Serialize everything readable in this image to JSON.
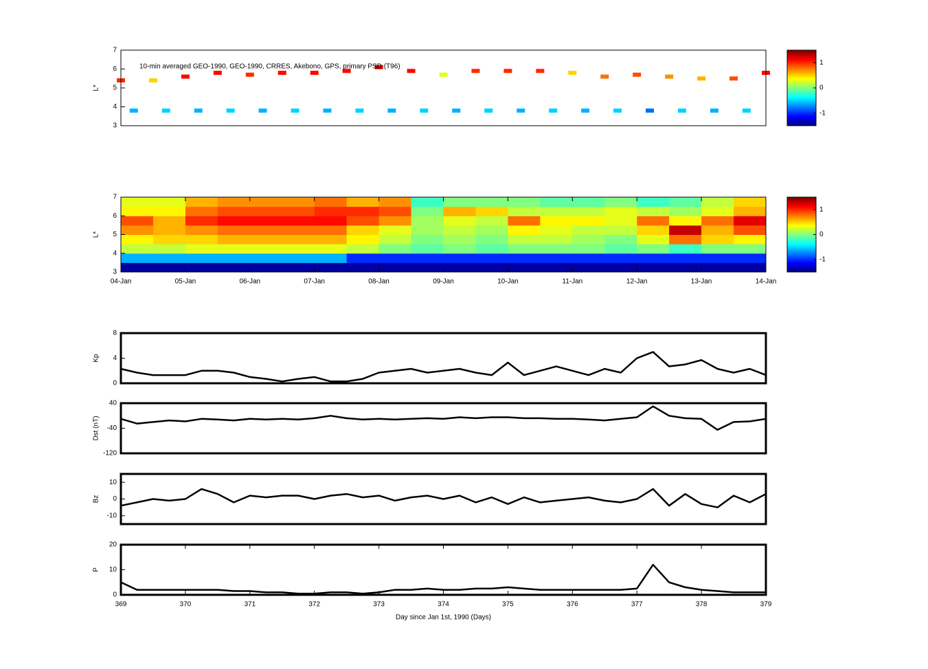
{
  "chart_data": [
    {
      "type": "scatter",
      "annotation": "10-min averaged GEO-1990, GEO-1990, CRRES, Akebono, GPS, primary PSD (T96)",
      "ylabel": "L*",
      "xlim": [
        369,
        379
      ],
      "ylim": [
        3,
        7
      ],
      "yticks": [
        3,
        4,
        5,
        6,
        7
      ],
      "colormap": "jet",
      "clim": [
        -1.5,
        1.5
      ],
      "colorbar_ticks": [
        -1,
        0,
        1
      ],
      "series": [
        {
          "x": [
            369,
            369.5,
            370,
            370.5,
            371,
            371.5,
            372,
            372.5,
            373,
            373.5,
            374,
            374.5,
            375,
            375.5,
            376,
            376.5,
            377,
            377.5,
            378,
            378.5,
            379
          ],
          "y": [
            5.4,
            5.4,
            5.6,
            5.8,
            5.7,
            5.8,
            5.8,
            5.9,
            6.1,
            5.9,
            5.7,
            5.9,
            5.9,
            5.9,
            5.8,
            5.6,
            5.7,
            5.6,
            5.5,
            5.5,
            5.8
          ],
          "values": [
            1.0,
            0.5,
            1.1,
            1.1,
            1.0,
            1.1,
            1.1,
            1.1,
            1.2,
            1.1,
            0.3,
            1.0,
            1.0,
            1.0,
            0.5,
            0.8,
            0.9,
            0.7,
            0.6,
            0.9,
            1.1
          ]
        },
        {
          "x": [
            369.2,
            369.7,
            370.2,
            370.7,
            371.2,
            371.7,
            372.2,
            372.7,
            373.2,
            373.7,
            374.2,
            374.7,
            375.2,
            375.7,
            376.2,
            376.7,
            377.2,
            377.7,
            378.2,
            378.7
          ],
          "y": [
            3.8,
            3.8,
            3.8,
            3.8,
            3.8,
            3.8,
            3.8,
            3.8,
            3.8,
            3.8,
            3.8,
            3.8,
            3.8,
            3.8,
            3.8,
            3.8,
            3.8,
            3.8,
            3.8,
            3.8
          ],
          "values": [
            -0.6,
            -0.5,
            -0.6,
            -0.5,
            -0.6,
            -0.5,
            -0.6,
            -0.5,
            -0.6,
            -0.5,
            -0.6,
            -0.5,
            -0.6,
            -0.5,
            -0.6,
            -0.5,
            -0.8,
            -0.5,
            -0.6,
            -0.5
          ]
        }
      ]
    },
    {
      "type": "heatmap",
      "ylabel": "L*",
      "xlim": [
        369,
        379
      ],
      "ylim": [
        3,
        7
      ],
      "yticks": [
        3,
        4,
        5,
        6,
        7
      ],
      "xticks": [
        {
          "value": 369,
          "label": "04-Jan"
        },
        {
          "value": 370,
          "label": "05-Jan"
        },
        {
          "value": 371,
          "label": "06-Jan"
        },
        {
          "value": 372,
          "label": "07-Jan"
        },
        {
          "value": 373,
          "label": "08-Jan"
        },
        {
          "value": 374,
          "label": "09-Jan"
        },
        {
          "value": 375,
          "label": "10-Jan"
        },
        {
          "value": 376,
          "label": "11-Jan"
        },
        {
          "value": 377,
          "label": "12-Jan"
        },
        {
          "value": 378,
          "label": "13-Jan"
        },
        {
          "value": 379,
          "label": "14-Jan"
        }
      ],
      "colormap": "jet",
      "clim": [
        -1.5,
        1.5
      ],
      "colorbar_ticks": [
        -1,
        0,
        1
      ],
      "x_edges": [
        369,
        369.5,
        370,
        370.5,
        371,
        371.5,
        372,
        372.5,
        373,
        373.5,
        374,
        374.5,
        375,
        375.5,
        376,
        376.5,
        377,
        377.5,
        378,
        378.5,
        379
      ],
      "y_edges": [
        3,
        3.5,
        4,
        4.5,
        5,
        5.5,
        6,
        6.5,
        7
      ],
      "z": [
        [
          -1.4,
          -1.4,
          -1.4,
          -1.4,
          -1.4,
          -1.4,
          -1.4,
          -1.4,
          -1.4,
          -1.4,
          -1.4,
          -1.4,
          -1.4,
          -1.4,
          -1.4,
          -1.4,
          -1.4,
          -1.4,
          -1.4,
          -1.4
        ],
        [
          -0.6,
          -0.6,
          -0.6,
          -0.6,
          -0.6,
          -0.6,
          -0.6,
          -1.0,
          -1.0,
          -1.0,
          -1.0,
          -1.0,
          -1.0,
          -1.0,
          -1.0,
          -1.0,
          -1.0,
          -1.0,
          -1.0,
          -1.0
        ],
        [
          0.2,
          0.2,
          0.3,
          0.3,
          0.3,
          0.3,
          0.3,
          0.2,
          0,
          -0.1,
          0,
          -0.1,
          0,
          0,
          0,
          -0.1,
          0,
          -0.2,
          0,
          0
        ],
        [
          0.4,
          0.5,
          0.5,
          0.6,
          0.6,
          0.6,
          0.6,
          0.4,
          0.2,
          0,
          0.1,
          0,
          0.2,
          0.2,
          0.1,
          0,
          0.3,
          0.8,
          0.5,
          0.4
        ],
        [
          0.7,
          0.6,
          0.7,
          0.8,
          0.8,
          0.8,
          0.8,
          0.5,
          0.3,
          0.1,
          0.2,
          0.1,
          0.4,
          0.3,
          0.2,
          0.2,
          0.5,
          1.3,
          0.6,
          0.9
        ],
        [
          0.9,
          0.6,
          1.0,
          1.1,
          1.1,
          1.1,
          1.1,
          0.9,
          0.7,
          0.1,
          0.3,
          0.2,
          0.8,
          0.4,
          0.4,
          0.3,
          0.8,
          0.4,
          0.8,
          1.2
        ],
        [
          0.4,
          0.4,
          0.8,
          0.9,
          0.9,
          0.9,
          1.0,
          1.0,
          0.9,
          0,
          0.6,
          0.5,
          0.2,
          0.2,
          0.2,
          0.3,
          0.2,
          0.1,
          0.3,
          0.6
        ],
        [
          0.3,
          0.3,
          0.6,
          0.7,
          0.7,
          0.7,
          0.8,
          0.6,
          0.7,
          -0.2,
          0,
          0,
          0,
          -0.1,
          -0.1,
          0,
          -0.2,
          -0.1,
          0.2,
          0.5
        ]
      ]
    },
    {
      "type": "line",
      "ylabel": "Kp",
      "xlim": [
        369,
        379
      ],
      "ylim": [
        0,
        8
      ],
      "yticks": [
        0,
        4,
        8
      ],
      "x": [
        369,
        369.25,
        369.5,
        369.75,
        370,
        370.25,
        370.5,
        370.75,
        371,
        371.25,
        371.5,
        371.75,
        372,
        372.25,
        372.5,
        372.75,
        373,
        373.25,
        373.5,
        373.75,
        374,
        374.25,
        374.5,
        374.75,
        375,
        375.25,
        375.5,
        375.75,
        376,
        376.25,
        376.5,
        376.75,
        377,
        377.25,
        377.5,
        377.75,
        378,
        378.25,
        378.5,
        378.75,
        379
      ],
      "series": [
        {
          "color": "#000000",
          "values": [
            2.3,
            1.7,
            1.3,
            1.3,
            1.3,
            2.0,
            2.0,
            1.7,
            1.0,
            0.7,
            0.3,
            0.7,
            1.0,
            0.3,
            0.3,
            0.7,
            1.7,
            2.0,
            2.3,
            1.7,
            2.0,
            2.3,
            1.7,
            1.3,
            3.3,
            1.3,
            2.0,
            2.7,
            2.0,
            1.3,
            2.3,
            1.7,
            4.0,
            5.0,
            2.7,
            3.0,
            3.7,
            2.3,
            1.7,
            2.3,
            1.3
          ]
        }
      ]
    },
    {
      "type": "line",
      "ylabel": "Dst (nT)",
      "xlim": [
        369,
        379
      ],
      "ylim": [
        -120,
        40
      ],
      "yticks": [
        -120,
        -40,
        40
      ],
      "x": [
        369,
        369.25,
        369.5,
        369.75,
        370,
        370.25,
        370.5,
        370.75,
        371,
        371.25,
        371.5,
        371.75,
        372,
        372.25,
        372.5,
        372.75,
        373,
        373.25,
        373.5,
        373.75,
        374,
        374.25,
        374.5,
        374.75,
        375,
        375.25,
        375.5,
        375.75,
        376,
        376.25,
        376.5,
        376.75,
        377,
        377.25,
        377.5,
        377.75,
        378,
        378.25,
        378.5,
        378.75,
        379
      ],
      "series": [
        {
          "color": "#000000",
          "values": [
            -10,
            -25,
            -20,
            -15,
            -18,
            -10,
            -12,
            -15,
            -10,
            -12,
            -10,
            -12,
            -8,
            0,
            -8,
            -12,
            -10,
            -12,
            -10,
            -8,
            -10,
            -5,
            -8,
            -5,
            -5,
            -8,
            -8,
            -10,
            -10,
            -12,
            -15,
            -10,
            -5,
            30,
            0,
            -8,
            -10,
            -45,
            -20,
            -18,
            -10
          ]
        }
      ]
    },
    {
      "type": "line",
      "ylabel": "Bz",
      "xlim": [
        369,
        379
      ],
      "ylim": [
        -15,
        15
      ],
      "yticks": [
        -10,
        0,
        10
      ],
      "x": [
        369,
        369.25,
        369.5,
        369.75,
        370,
        370.25,
        370.5,
        370.75,
        371,
        371.25,
        371.5,
        371.75,
        372,
        372.25,
        372.5,
        372.75,
        373,
        373.25,
        373.5,
        373.75,
        374,
        374.25,
        374.5,
        374.75,
        375,
        375.25,
        375.5,
        375.75,
        376,
        376.25,
        376.5,
        376.75,
        377,
        377.25,
        377.5,
        377.75,
        378,
        378.25,
        378.5,
        378.75,
        379
      ],
      "series": [
        {
          "color": "#000000",
          "values": [
            -4,
            -2,
            0,
            -1,
            0,
            6,
            3,
            -2,
            2,
            1,
            2,
            2,
            0,
            2,
            3,
            1,
            2,
            -1,
            1,
            2,
            0,
            2,
            -2,
            1,
            -3,
            1,
            -2,
            -1,
            0,
            1,
            -1,
            -2,
            0,
            6,
            -4,
            3,
            -3,
            -5,
            2,
            -2,
            3
          ]
        }
      ]
    },
    {
      "type": "line",
      "ylabel": "P",
      "xlabel": "Day since Jan 1st, 1990 (Days)",
      "xlim": [
        369,
        379
      ],
      "ylim": [
        0,
        20
      ],
      "yticks": [
        0,
        10,
        20
      ],
      "xticks": [
        369,
        370,
        371,
        372,
        373,
        374,
        375,
        376,
        377,
        378,
        379
      ],
      "x": [
        369,
        369.25,
        369.5,
        369.75,
        370,
        370.25,
        370.5,
        370.75,
        371,
        371.25,
        371.5,
        371.75,
        372,
        372.25,
        372.5,
        372.75,
        373,
        373.25,
        373.5,
        373.75,
        374,
        374.25,
        374.5,
        374.75,
        375,
        375.25,
        375.5,
        375.75,
        376,
        376.25,
        376.5,
        376.75,
        377,
        377.25,
        377.5,
        377.75,
        378,
        378.25,
        378.5,
        378.75,
        379
      ],
      "series": [
        {
          "color": "#000000",
          "values": [
            5,
            2,
            2,
            2,
            2,
            2,
            2,
            1.5,
            1.5,
            1,
            1,
            0.5,
            0.5,
            1,
            1,
            0.5,
            1,
            2,
            2,
            2.5,
            2,
            2,
            2.5,
            2.5,
            3,
            2.5,
            2,
            2,
            2,
            2,
            2,
            2,
            2.5,
            12,
            5,
            3,
            2,
            1.5,
            1,
            1,
            1
          ]
        }
      ]
    }
  ]
}
